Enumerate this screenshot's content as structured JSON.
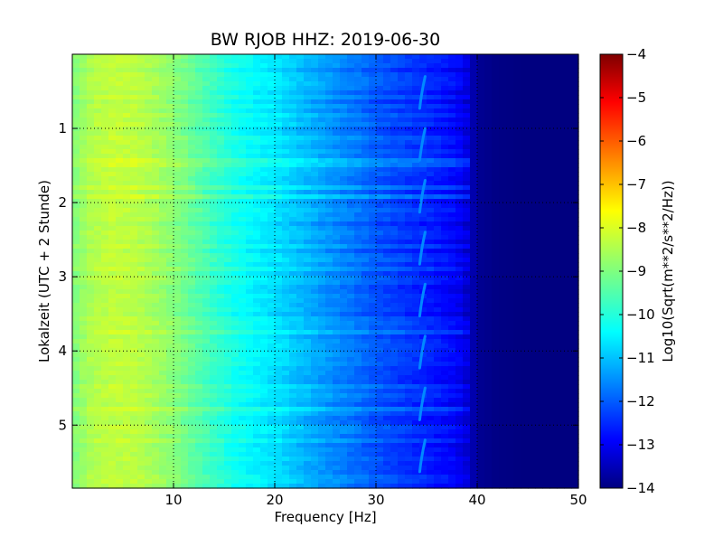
{
  "chart_data": {
    "type": "heatmap",
    "title": "BW RJOB HHZ: 2019-06-30",
    "xlabel": "Frequency [Hz]",
    "ylabel": "Lokalzeit (UTC + 2 Stunde)",
    "xlim": [
      0,
      50
    ],
    "ylim": [
      0,
      5.85
    ],
    "y_inverted": true,
    "xticks": [
      10,
      20,
      30,
      40,
      50
    ],
    "yticks": [
      1,
      2,
      3,
      4,
      5
    ],
    "grid": true,
    "colormap": "jet",
    "colorbar": {
      "label": "Log10(Sqrt(m**2/s**2/Hz))",
      "min": -14,
      "max": -4,
      "ticks": [
        -4,
        -5,
        -6,
        -7,
        -8,
        -9,
        -10,
        -11,
        -12,
        -13,
        -14
      ]
    },
    "spectral_profile": {
      "frequency_hz": [
        0,
        2,
        4,
        6,
        8,
        10,
        12,
        14,
        16,
        18,
        20,
        22,
        24,
        26,
        28,
        30,
        32,
        34,
        36,
        38,
        39,
        40,
        42,
        45,
        50
      ],
      "log10_amplitude": [
        -9.0,
        -8.5,
        -8.35,
        -8.4,
        -8.6,
        -8.9,
        -9.3,
        -9.7,
        -10.05,
        -10.3,
        -10.5,
        -10.8,
        -11.1,
        -11.35,
        -11.6,
        -11.9,
        -12.1,
        -12.3,
        -12.5,
        -12.75,
        -13.1,
        -13.8,
        -13.95,
        -14.0,
        -14.0
      ]
    },
    "tonal_line": {
      "frequency_hz": 34.5,
      "bursts_hours": [
        0.35,
        1.05,
        1.75,
        2.45,
        3.15,
        3.85,
        4.55,
        5.25
      ],
      "log10_amplitude": -11.4
    }
  }
}
